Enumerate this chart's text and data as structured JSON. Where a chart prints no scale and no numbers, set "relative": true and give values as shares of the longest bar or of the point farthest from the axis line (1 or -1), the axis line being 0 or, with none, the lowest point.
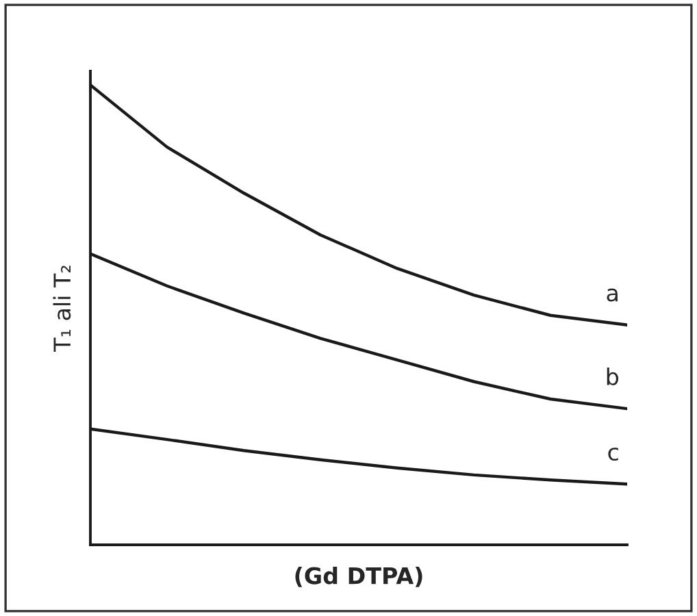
{
  "chart_data": {
    "type": "line",
    "relative": true,
    "xlabel": "(Gd DTPA)",
    "ylabel": "T₁ ali T₂",
    "categories": [
      null,
      null,
      null,
      null,
      null,
      null,
      null,
      null
    ],
    "series": [
      {
        "name": "a",
        "color": "#1a1a1a",
        "values": [
          1.0,
          0.865,
          0.765,
          0.674,
          0.601,
          0.543,
          0.499,
          0.478
        ]
      },
      {
        "name": "b",
        "color": "#1a1a1a",
        "values": [
          0.633,
          0.563,
          0.504,
          0.449,
          0.402,
          0.355,
          0.317,
          0.296
        ]
      },
      {
        "name": "c",
        "color": "#1a1a1a",
        "values": [
          0.252,
          0.229,
          0.205,
          0.185,
          0.167,
          0.152,
          0.141,
          0.132
        ]
      }
    ],
    "grid": false,
    "legend": false,
    "marker": "none",
    "line_style": "solid"
  }
}
